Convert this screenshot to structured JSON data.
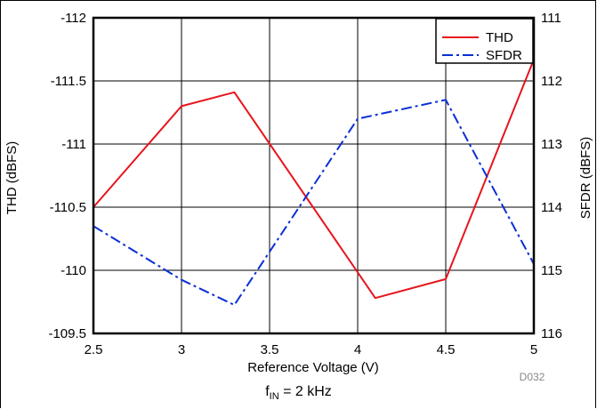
{
  "chart_data": {
    "type": "line",
    "xlabel": "Reference Voltage (V)",
    "ylabel_left": "THD (dBFS)",
    "ylabel_right": "SFDR (dBFS)",
    "xlim": [
      2.5,
      5
    ],
    "ylim_left": [
      -109.5,
      -112
    ],
    "ylim_right": [
      116,
      111
    ],
    "x_ticks": [
      "2.5",
      "3",
      "3.5",
      "4",
      "4.5",
      "5"
    ],
    "y_left_ticks": [
      "-112",
      "-111.5",
      "-111",
      "-110.5",
      "-110",
      "-109.5"
    ],
    "y_right_ticks": [
      "111",
      "112",
      "113",
      "114",
      "115",
      "116"
    ],
    "grid": true,
    "legend_position": "top-right",
    "series": [
      {
        "name": "THD",
        "axis": "left",
        "color": "#e8141c",
        "dash": "solid",
        "x": [
          2.5,
          3,
          3.3,
          4.1,
          4.5,
          5
        ],
        "y": [
          -110.5,
          -111.3,
          -111.41,
          -109.78,
          -109.93,
          -111.67
        ]
      },
      {
        "name": "SFDR",
        "axis": "right",
        "color": "#0a2fd6",
        "dash": "dashdot",
        "x": [
          2.5,
          3,
          3.3,
          4,
          4.5,
          5
        ],
        "y": [
          114.3,
          115.15,
          115.55,
          112.6,
          112.3,
          114.9
        ]
      }
    ],
    "annotation": "D032"
  },
  "caption": {
    "prefix": "f",
    "sub": "IN",
    "suffix": " = 2 kHz"
  }
}
